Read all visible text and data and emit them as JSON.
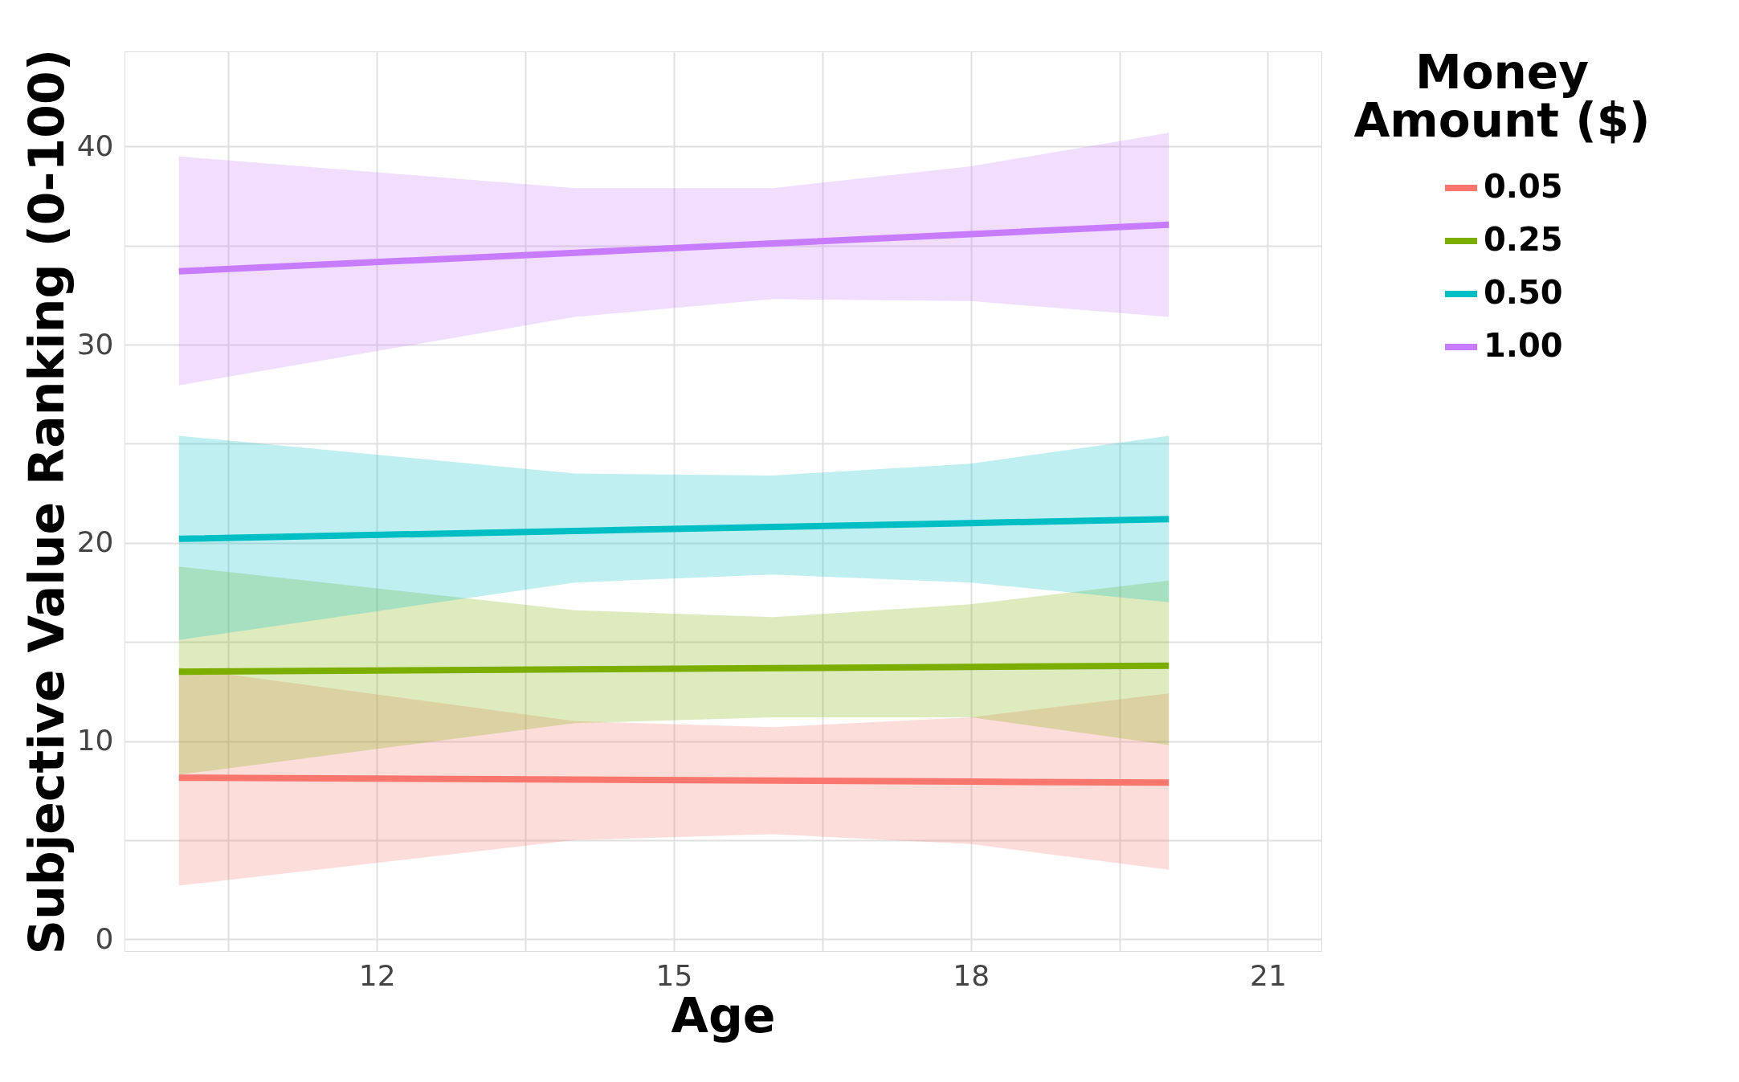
{
  "chart_data": {
    "type": "line",
    "xlabel": "Age",
    "ylabel": "Subjective Value Ranking (0-100)",
    "legend_title": "Money Amount ($)",
    "legend": "right",
    "grid": true,
    "line_style": "solid",
    "marker": "none",
    "xlim": [
      9.45,
      21.54
    ],
    "xticks": [
      {
        "value": 10.5,
        "label": null
      },
      12,
      {
        "value": 13.5,
        "label": null
      },
      15,
      {
        "value": 16.5,
        "label": null
      },
      18,
      {
        "value": 19.5,
        "label": null
      },
      21
    ],
    "ylim": [
      -0.6,
      44.8
    ],
    "yticks": [
      0,
      {
        "value": 5,
        "label": null
      },
      10,
      {
        "value": 15,
        "label": null
      },
      20,
      {
        "value": 25,
        "label": null
      },
      30,
      {
        "value": 35,
        "label": null
      },
      40
    ],
    "x": [
      10,
      14,
      16,
      18,
      20
    ],
    "series": [
      {
        "name": "0.05",
        "color": "#f8766d",
        "values": [
          8.15,
          8.05,
          8.0,
          7.95,
          7.9
        ],
        "lower": [
          2.7,
          5.0,
          5.3,
          4.8,
          3.5
        ],
        "upper": [
          13.7,
          11.0,
          10.7,
          11.2,
          12.4
        ]
      },
      {
        "name": "0.25",
        "color": "#7cae00",
        "values": [
          13.5,
          13.62,
          13.68,
          13.74,
          13.8
        ],
        "lower": [
          8.3,
          10.9,
          11.2,
          11.2,
          9.8
        ],
        "upper": [
          18.8,
          16.6,
          16.25,
          16.9,
          18.1
        ]
      },
      {
        "name": "0.50",
        "color": "#00bfc4",
        "values": [
          20.2,
          20.6,
          20.8,
          21.0,
          21.2
        ],
        "lower": [
          15.1,
          18.0,
          18.4,
          18.0,
          17.0
        ],
        "upper": [
          25.4,
          23.5,
          23.4,
          24.0,
          25.4
        ]
      },
      {
        "name": "1.00",
        "color": "#c77cff",
        "values": [
          33.7,
          34.64,
          35.11,
          35.58,
          36.05
        ],
        "lower": [
          27.95,
          31.4,
          32.3,
          32.2,
          31.4
        ],
        "upper": [
          39.5,
          37.9,
          37.9,
          39.0,
          40.7
        ]
      }
    ]
  }
}
